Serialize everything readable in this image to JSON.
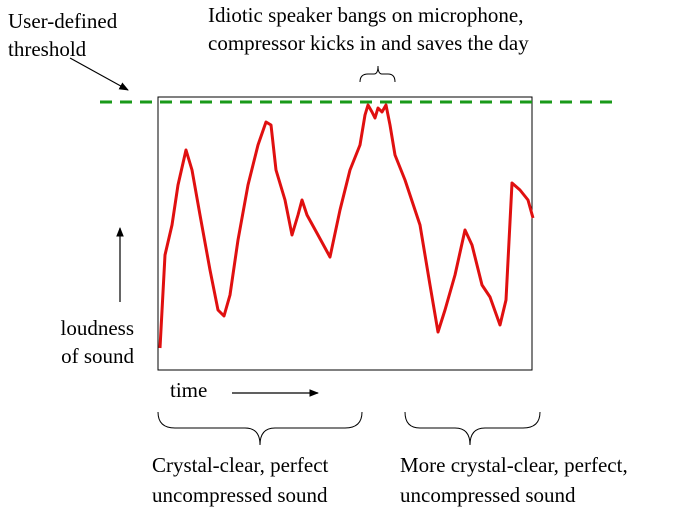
{
  "threshold_label": [
    "User-defined",
    "threshold"
  ],
  "peak_annotation": [
    "Idiotic speaker bangs on microphone,",
    "compressor kicks in and saves the day"
  ],
  "y_label": [
    "loudness",
    "of sound"
  ],
  "x_label": "time",
  "segments": [
    [
      "Crystal-clear, perfect",
      "uncompressed sound"
    ],
    [
      "More crystal-clear, perfect,",
      "uncompressed sound"
    ]
  ]
}
